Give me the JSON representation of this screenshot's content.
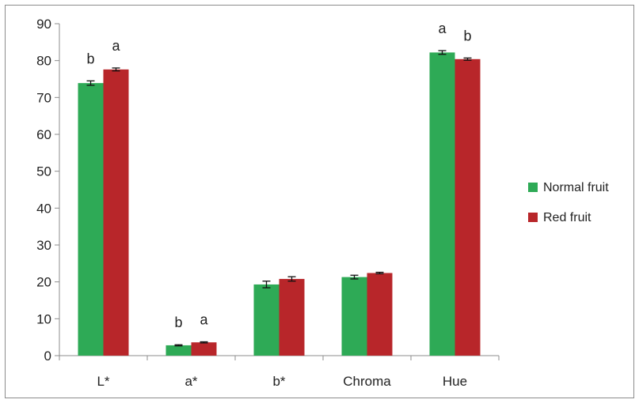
{
  "chart_data": {
    "type": "bar",
    "categories": [
      "L*",
      "a*",
      "b*",
      "Chroma",
      "Hue"
    ],
    "series": [
      {
        "name": "Normal fruit",
        "color": "#2eaa56",
        "values": [
          73.9,
          2.8,
          19.3,
          21.3,
          82.2
        ],
        "errors": [
          0.6,
          0.15,
          0.9,
          0.5,
          0.5
        ],
        "labels": [
          "b",
          "b",
          "",
          "",
          "a"
        ]
      },
      {
        "name": "Red fruit",
        "color": "#b8262a",
        "values": [
          77.6,
          3.6,
          20.8,
          22.4,
          80.4
        ],
        "errors": [
          0.4,
          0.15,
          0.6,
          0.2,
          0.3
        ],
        "labels": [
          "a",
          "a",
          "",
          "",
          "b"
        ]
      }
    ],
    "ylim": [
      0,
      90
    ],
    "yticks": [
      0,
      10,
      20,
      30,
      40,
      50,
      60,
      70,
      80,
      90
    ],
    "grid": false,
    "legend_position": "right",
    "title": "",
    "xlabel": "",
    "ylabel": ""
  }
}
